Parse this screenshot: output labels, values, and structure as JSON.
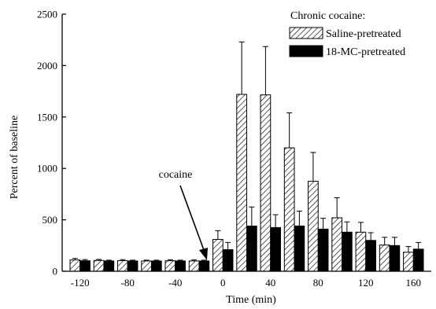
{
  "chart_data": {
    "type": "bar",
    "xlabel": "Time (min)",
    "ylabel": "Percent of baseline",
    "ylim": [
      0,
      2500
    ],
    "yticks": [
      0,
      500,
      1000,
      1500,
      2000,
      2500
    ],
    "xlim": [
      -135,
      175
    ],
    "xticks": [
      -120,
      -80,
      -40,
      0,
      40,
      80,
      120,
      160
    ],
    "grid": false,
    "legend": {
      "title": "Chronic cocaine:",
      "placement": "top-right"
    },
    "annotation": {
      "text": "cocaine",
      "x": -10
    },
    "x": [
      -120,
      -100,
      -80,
      -60,
      -40,
      -20,
      0,
      20,
      40,
      60,
      80,
      100,
      120,
      140,
      160
    ],
    "series": [
      {
        "name": "Saline-pretreated",
        "pattern": "hatched",
        "values": [
          110,
          105,
          103,
          100,
          102,
          100,
          310,
          1720,
          1715,
          1200,
          875,
          520,
          380,
          255,
          185
        ],
        "errors": [
          15,
          10,
          10,
          8,
          10,
          10,
          85,
          510,
          470,
          340,
          280,
          195,
          95,
          75,
          55
        ]
      },
      {
        "name": "18-MC-pretreated",
        "pattern": "solid",
        "color": "#000000",
        "values": [
          102,
          100,
          100,
          100,
          100,
          100,
          210,
          440,
          425,
          440,
          410,
          380,
          300,
          250,
          215
        ],
        "errors": [
          12,
          8,
          8,
          8,
          8,
          8,
          70,
          185,
          125,
          145,
          105,
          100,
          75,
          80,
          65
        ]
      }
    ]
  }
}
